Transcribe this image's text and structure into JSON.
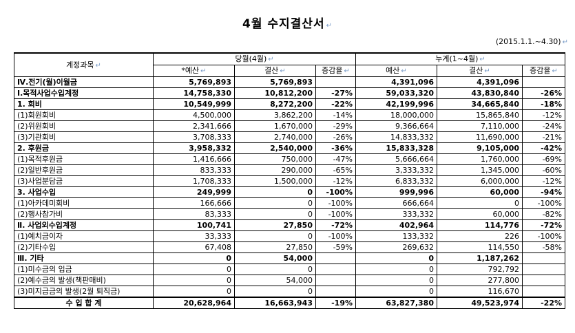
{
  "title": "4월 수지결산서",
  "period": "(2015.1.1.~4.30)",
  "header": {
    "account": "계정과목",
    "current_month": "당월(4월)",
    "cumulative": "누계(1~4월)",
    "budget_star": "*예산",
    "settlement": "결산",
    "change_rate": "증감율",
    "budget": "예산"
  },
  "rows": [
    {
      "label": "Ⅳ.전기(월)이월금",
      "b1": "5,769,893",
      "s1": "5,769,893",
      "r1": "",
      "b2": "4,391,096",
      "s2": "4,391,096",
      "r2": "",
      "bold": true
    },
    {
      "label": "Ⅰ.목적사업수입계정",
      "b1": "14,758,330",
      "s1": "10,812,200",
      "r1": "-27%",
      "b2": "59,033,320",
      "s2": "43,830,840",
      "r2": "-26%",
      "bold": true
    },
    {
      "label": "1. 회비",
      "b1": "10,549,999",
      "s1": "8,272,200",
      "r1": "-22%",
      "b2": "42,199,996",
      "s2": "34,665,840",
      "r2": "-18%",
      "bold": true
    },
    {
      "label": "(1)회원회비",
      "b1": "4,500,000",
      "s1": "3,862,200",
      "r1": "-14%",
      "b2": "18,000,000",
      "s2": "15,865,840",
      "r2": "-12%",
      "bold": false
    },
    {
      "label": "(2)위원회비",
      "b1": "2,341,666",
      "s1": "1,670,000",
      "r1": "-29%",
      "b2": "9,366,664",
      "s2": "7,110,000",
      "r2": "-24%",
      "bold": false
    },
    {
      "label": "(3)기관회비",
      "b1": "3,708,333",
      "s1": "2,740,000",
      "r1": "-26%",
      "b2": "14,833,332",
      "s2": "11,690,000",
      "r2": "-21%",
      "bold": false
    },
    {
      "label": "2. 후원금",
      "b1": "3,958,332",
      "s1": "2,540,000",
      "r1": "-36%",
      "b2": "15,833,328",
      "s2": "9,105,000",
      "r2": "-42%",
      "bold": true
    },
    {
      "label": "(1)목적후원금",
      "b1": "1,416,666",
      "s1": "750,000",
      "r1": "-47%",
      "b2": "5,666,664",
      "s2": "1,760,000",
      "r2": "-69%",
      "bold": false
    },
    {
      "label": "(2)일반후원금",
      "b1": "833,333",
      "s1": "290,000",
      "r1": "-65%",
      "b2": "3,333,332",
      "s2": "1,345,000",
      "r2": "-60%",
      "bold": false
    },
    {
      "label": "(3)사업분담금",
      "b1": "1,708,333",
      "s1": "1,500,000",
      "r1": "-12%",
      "b2": "6,833,332",
      "s2": "6,000,000",
      "r2": "-12%",
      "bold": false
    },
    {
      "label": "3. 사업수입",
      "b1": "249,999",
      "s1": "0",
      "r1": "-100%",
      "b2": "999,996",
      "s2": "60,000",
      "r2": "-94%",
      "bold": true
    },
    {
      "label": "(1)아카데미회비",
      "b1": "166,666",
      "s1": "0",
      "r1": "-100%",
      "b2": "666,664",
      "s2": "0",
      "r2": "-100%",
      "bold": false
    },
    {
      "label": "(2)행사참가비",
      "b1": "83,333",
      "s1": "0",
      "r1": "-100%",
      "b2": "333,332",
      "s2": "60,000",
      "r2": "-82%",
      "bold": false
    },
    {
      "label": "Ⅱ. 사업외수입계정",
      "b1": "100,741",
      "s1": "27,850",
      "r1": "-72%",
      "b2": "402,964",
      "s2": "114,776",
      "r2": "-72%",
      "bold": true
    },
    {
      "label": "(1)예치금이자",
      "b1": "33,333",
      "s1": "0",
      "r1": "-100%",
      "b2": "133,332",
      "s2": "226",
      "r2": "-100%",
      "bold": false
    },
    {
      "label": "(2)기타수입",
      "b1": "67,408",
      "s1": "27,850",
      "r1": "-59%",
      "b2": "269,632",
      "s2": "114,550",
      "r2": "-58%",
      "bold": false
    },
    {
      "label": "Ⅲ. 기타",
      "b1": "0",
      "s1": "54,000",
      "r1": "",
      "b2": "0",
      "s2": "1,187,262",
      "r2": "",
      "bold": true
    },
    {
      "label": "(1)미수금의 입금",
      "b1": "0",
      "s1": "0",
      "r1": "",
      "b2": "0",
      "s2": "792,792",
      "r2": "",
      "bold": false
    },
    {
      "label": "(2)예수금의 발생(책판매비)",
      "b1": "0",
      "s1": "54,000",
      "r1": "",
      "b2": "0",
      "s2": "277,800",
      "r2": "",
      "bold": false
    },
    {
      "label": "(3)미지급금의 발생(2월 퇴직금)",
      "b1": "0",
      "s1": "0",
      "r1": "",
      "b2": "0",
      "s2": "116,670",
      "r2": "",
      "bold": false
    },
    {
      "label": "수 입 합 계",
      "b1": "20,628,964",
      "s1": "16,663,943",
      "r1": "-19%",
      "b2": "63,827,380",
      "s2": "49,523,974",
      "r2": "-22%",
      "bold": true,
      "total": true
    }
  ]
}
